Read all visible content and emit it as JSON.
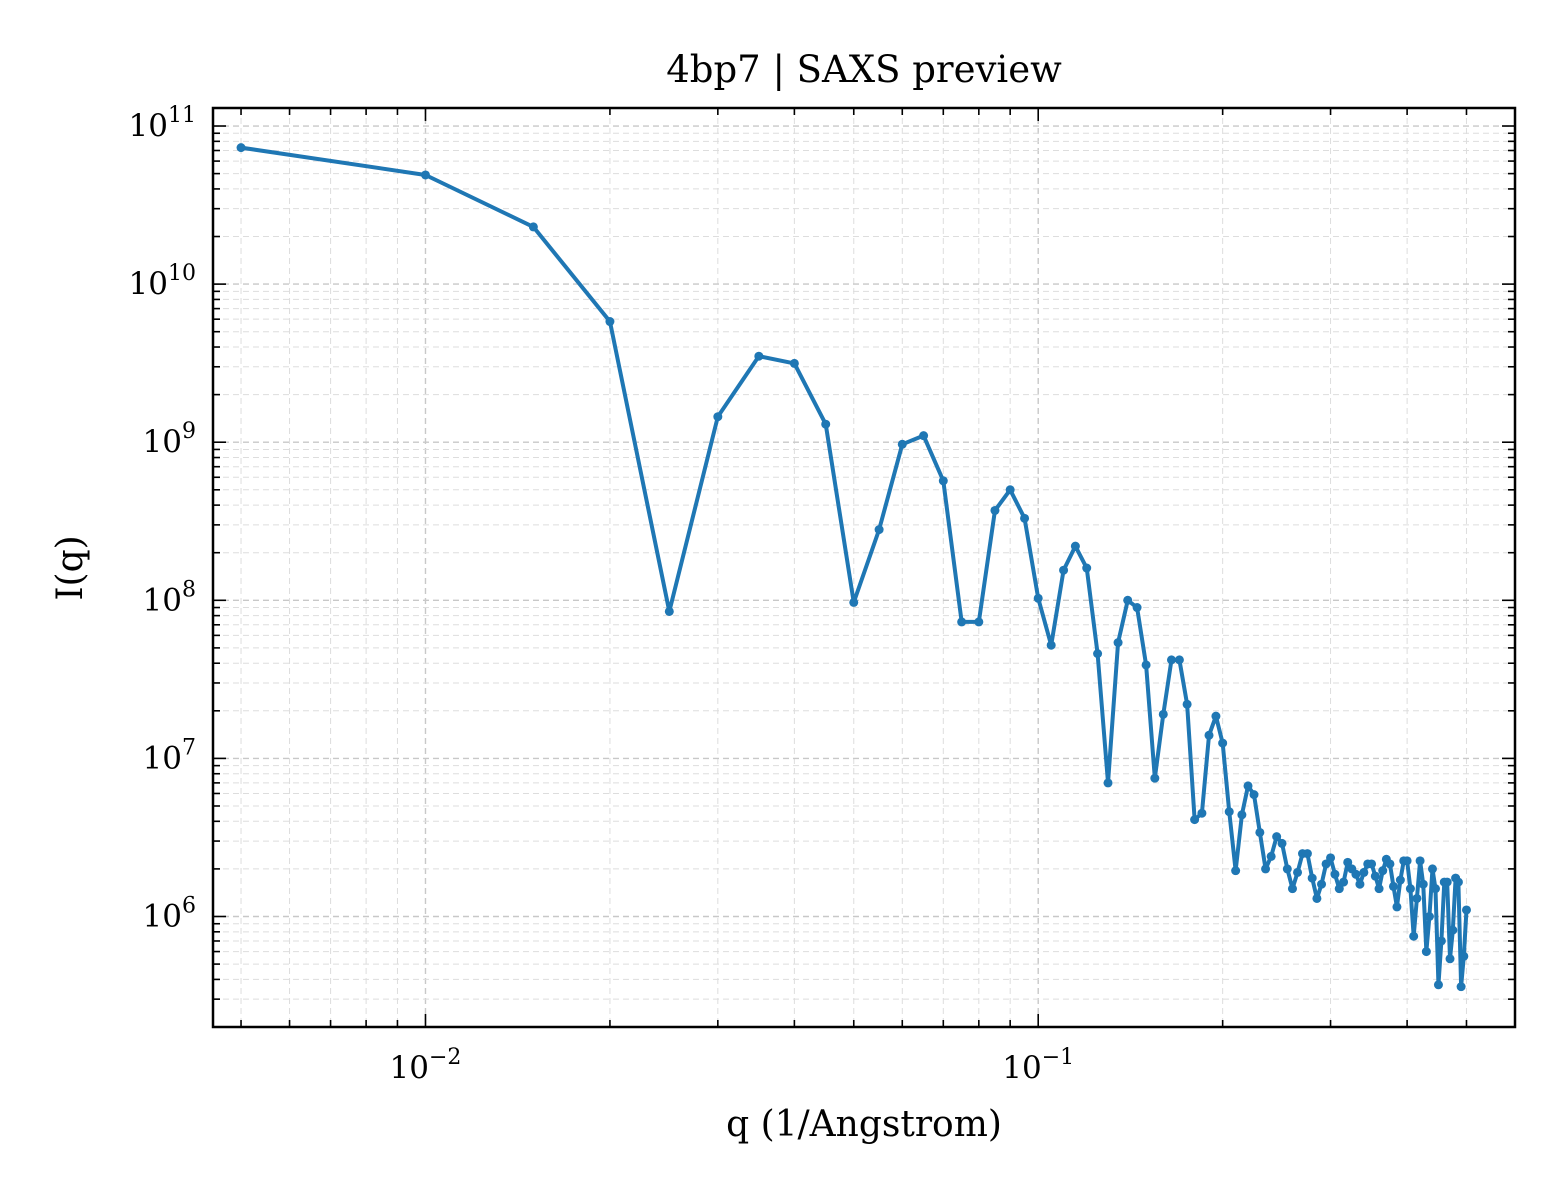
{
  "chart_data": {
    "type": "line",
    "title": "4bp7 | SAXS preview",
    "xlabel": "q (1/Angstrom)",
    "ylabel": "I(q)",
    "xscale": "log",
    "yscale": "log",
    "xlim": [
      0.0045,
      0.6
    ],
    "ylim": [
      200000,
      130000000000
    ],
    "x_ticks": [
      {
        "base": "10",
        "exp": "−2",
        "value": 0.01
      },
      {
        "base": "10",
        "exp": "−1",
        "value": 0.1
      }
    ],
    "y_ticks": [
      {
        "base": "10",
        "exp": "6",
        "value": 1000000
      },
      {
        "base": "10",
        "exp": "7",
        "value": 10000000
      },
      {
        "base": "10",
        "exp": "8",
        "value": 100000000
      },
      {
        "base": "10",
        "exp": "9",
        "value": 1000000000
      },
      {
        "base": "10",
        "exp": "10",
        "value": 10000000000
      },
      {
        "base": "10",
        "exp": "11",
        "value": 100000000000
      }
    ],
    "grid": true,
    "legend": false,
    "series": [
      {
        "color": "#1f77b4",
        "marker": "circle",
        "x": [
          0.005,
          0.01,
          0.015,
          0.02,
          0.025,
          0.03,
          0.035,
          0.04,
          0.045,
          0.05,
          0.055,
          0.06,
          0.065,
          0.07,
          0.075,
          0.08,
          0.085,
          0.09,
          0.095,
          0.1,
          0.105,
          0.11,
          0.115,
          0.12,
          0.125,
          0.13,
          0.135,
          0.14,
          0.145,
          0.15,
          0.155,
          0.16,
          0.165,
          0.17,
          0.175,
          0.18,
          0.185,
          0.19,
          0.195,
          0.2,
          0.205,
          0.21,
          0.215,
          0.22,
          0.225,
          0.23,
          0.235,
          0.24,
          0.245,
          0.25,
          0.255,
          0.26,
          0.265,
          0.27,
          0.275,
          0.28,
          0.285,
          0.29,
          0.295,
          0.3,
          0.305,
          0.31,
          0.315,
          0.32,
          0.325,
          0.33,
          0.335,
          0.34,
          0.345,
          0.35,
          0.355,
          0.36,
          0.365,
          0.37,
          0.375,
          0.38,
          0.385,
          0.39,
          0.395,
          0.4,
          0.405,
          0.41,
          0.415,
          0.42,
          0.425,
          0.43,
          0.435,
          0.44,
          0.445,
          0.45,
          0.455,
          0.46,
          0.465,
          0.47,
          0.475,
          0.48,
          0.485,
          0.49,
          0.495,
          0.5
        ],
        "y": [
          73000000000,
          49000000000,
          23000000000,
          5800000000,
          85000000,
          1450000000,
          3500000000,
          3150000000,
          1300000000,
          97000000,
          280000000,
          970000000,
          1100000000,
          570000000,
          73000000,
          73000000,
          370000000,
          500000000,
          330000000,
          103000000,
          52000000,
          155000000,
          220000000,
          160000000,
          46000000,
          7000000,
          54000000,
          100000000,
          90000000,
          39000000,
          7500000,
          19000000,
          42000000,
          42000000,
          22000000,
          4100000,
          4500000,
          14000000,
          18500000,
          12500000,
          4600000,
          1950000,
          4400000,
          6700000,
          5900000,
          3400000,
          2000000,
          2400000,
          3200000,
          2900000,
          2000000,
          1500000,
          1900000,
          2500000,
          2500000,
          1750000,
          1300000,
          1600000,
          2150000,
          2350000,
          1850000,
          1500000,
          1650000,
          2200000,
          2000000,
          1850000,
          1600000,
          1900000,
          2150000,
          2150000,
          1800000,
          1500000,
          1950000,
          2300000,
          2150000,
          1550000,
          1150000,
          1700000,
          2250000,
          2250000,
          1500000,
          750000,
          1300000,
          2250000,
          1600000,
          600000,
          1000000,
          2000000,
          1500000,
          370000,
          700000,
          1650000,
          1650000,
          540000,
          820000,
          1750000,
          1650000,
          360000,
          560000,
          1100000
        ]
      }
    ]
  }
}
